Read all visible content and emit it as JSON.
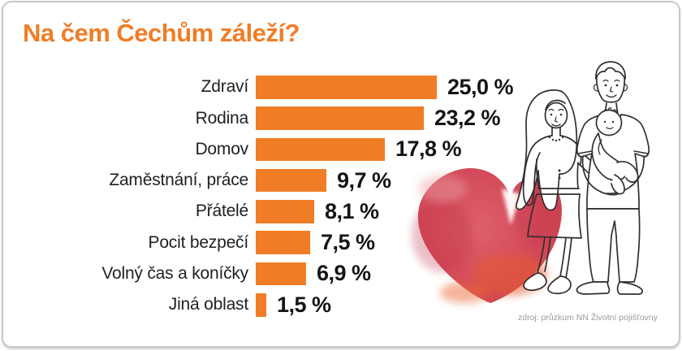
{
  "card": {
    "title": "Na čem Čechům záleží?",
    "source": "zdroj: průzkum NN Životní pojišťovny"
  },
  "chart_data": {
    "type": "bar",
    "orientation": "horizontal",
    "title": "Na čem Čechům záleží?",
    "categories": [
      "Zdraví",
      "Rodina",
      "Domov",
      "Zaměstnání, práce",
      "Přátelé",
      "Pocit bezpečí",
      "Volný čas a koníčky",
      "Jiná oblast"
    ],
    "values": [
      25.0,
      23.2,
      17.8,
      9.7,
      8.1,
      7.5,
      6.9,
      1.5
    ],
    "value_labels": [
      "25,0 %",
      "23,2 %",
      "17,8 %",
      "9,7 %",
      "8,1 %",
      "7,5 %",
      "6,9 %",
      "1,5 %"
    ],
    "unit": "%",
    "xlim": [
      0,
      25
    ],
    "grid": false,
    "legend": "none",
    "bar_color": "#F07D26"
  },
  "colors": {
    "accent_orange": "#F07D26",
    "text_dark": "#1f1f1f",
    "value_black": "#151515",
    "source_gray": "#9b9b9b",
    "border_gray": "#c8c8c8",
    "heart_red": "#D04A58",
    "heart_dark_red": "#BE3044",
    "heart_orange": "#E55B31",
    "heart_light_pink": "#ECA2A6",
    "lineart_ink": "#332e2e"
  },
  "illustration": {
    "name": "family-with-heart",
    "elements": [
      "watercolor-heart",
      "woman-figure",
      "man-figure",
      "baby-figure"
    ]
  }
}
